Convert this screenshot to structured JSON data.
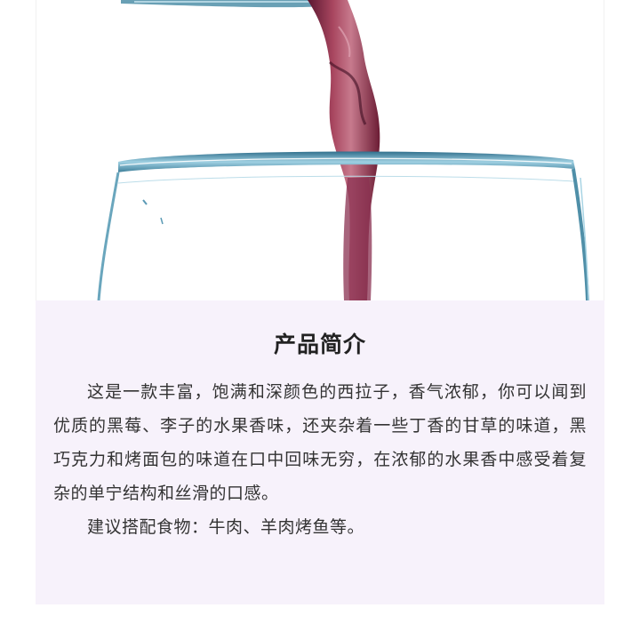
{
  "product_intro": {
    "title": "产品简介",
    "paragraphs": [
      "这是一款丰富，饱满和深颜色的西拉子，香气浓郁，你可以闻到优质的黑莓、李子的水果香味，还夹杂着一些丁香的甘草的味道，黑巧克力和烤面包的味道在口中回味无穷，在浓郁的水果香中感受着复杂的单宁结构和丝滑的口感。",
      "建议搭配食物：牛肉、羊肉烤鱼等。"
    ]
  },
  "colors": {
    "panel_background": "#f7f2fb",
    "wine": "#7a2440",
    "glass": "#5b9ab5"
  }
}
